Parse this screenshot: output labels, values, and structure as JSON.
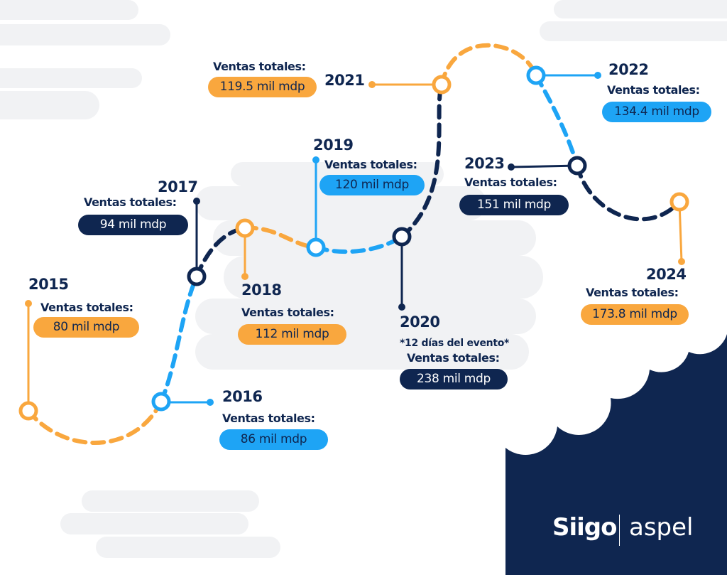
{
  "colors": {
    "orange": "#f9a73e",
    "blue": "#1ea4f5",
    "navy": "#0f2650",
    "cloud": "#f1f2f4"
  },
  "timeline": [
    {
      "year": "2015",
      "label": "Ventas totales:",
      "value": "80 mil mdp",
      "color": "orange"
    },
    {
      "year": "2016",
      "label": "Ventas totales:",
      "value": "86 mil mdp",
      "color": "blue"
    },
    {
      "year": "2017",
      "label": "Ventas totales:",
      "value": "94 mil mdp",
      "color": "navy"
    },
    {
      "year": "2018",
      "label": "Ventas totales:",
      "value": "112 mil mdp",
      "color": "orange"
    },
    {
      "year": "2019",
      "label": "Ventas totales:",
      "value": "120 mil mdp",
      "color": "blue"
    },
    {
      "year": "2020",
      "note": "*12 días del evento*",
      "label": "Ventas totales:",
      "value": "238 mil mdp",
      "color": "navy"
    },
    {
      "year": "2021",
      "label": "Ventas totales:",
      "value": "119.5 mil mdp",
      "color": "orange"
    },
    {
      "year": "2022",
      "label": "Ventas totales:",
      "value": "134.4 mil mdp",
      "color": "blue"
    },
    {
      "year": "2023",
      "label": "Ventas totales:",
      "value": "151 mil mdp",
      "color": "navy"
    },
    {
      "year": "2024",
      "label": "Ventas totales:",
      "value": "173.8 mil mdp",
      "color": "orange"
    }
  ],
  "logos": {
    "siigo": "Siigo",
    "aspel": "aspel"
  }
}
